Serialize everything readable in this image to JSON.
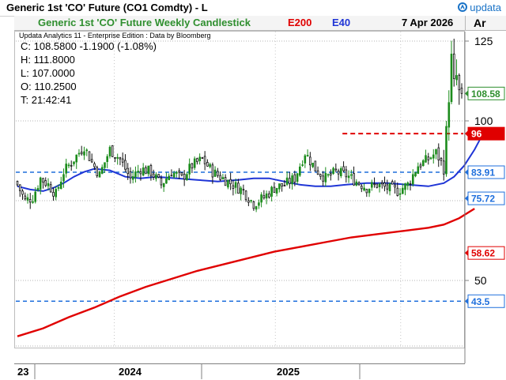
{
  "window": {
    "title": "Generic 1st 'CO' Future (CO1 Comdty) - L",
    "brand": "Updata Analytics",
    "brand_small": "updata"
  },
  "header": {
    "chart_title": "Generic 1st 'CO' Future Weekly Candlestick",
    "ma_slow_label": "E200",
    "ma_fast_label": "E40",
    "date": "7 Apr 2026",
    "axis_tab": "Ar"
  },
  "info": {
    "source_line": "Updata Analytics 11 - Enterprise Edition : Data by Bloomberg",
    "close_line": "C: 108.5800  -1.1900 (-1.08%)",
    "high_line": "H: 111.8000",
    "low_line": "L: 107.0000",
    "open_line": "O: 110.2500",
    "time_line": "T: 21:42:41"
  },
  "colors": {
    "up_candle": "#1c8c1c",
    "down_candle": "#111111",
    "ma_slow": "#e00000",
    "ma_fast": "#1f35d6",
    "hline_red": "#e00000",
    "hline_blue": "#1f6fdc",
    "label_green": "#2f8f2f",
    "label_red": "#e00000",
    "label_blue": "#1f6fdc"
  },
  "chart_data": {
    "type": "candlestick",
    "y_ticks": [
      125,
      100,
      50
    ],
    "y_range": [
      28,
      130
    ],
    "x_labels": [
      "23",
      "2024",
      "2025"
    ],
    "grid_values": [
      125,
      100,
      75,
      50
    ],
    "ma_fast": [
      [
        0,
        79.5
      ],
      [
        5,
        78.5
      ],
      [
        10,
        78.0
      ],
      [
        14,
        79.0
      ],
      [
        18,
        80.5
      ],
      [
        22,
        82.5
      ],
      [
        26,
        84.0
      ],
      [
        30,
        85.0
      ],
      [
        36,
        84.5
      ],
      [
        42,
        82.5
      ],
      [
        48,
        82.0
      ],
      [
        54,
        82.5
      ],
      [
        62,
        82.0
      ],
      [
        70,
        81.5
      ],
      [
        78,
        81.0
      ],
      [
        86,
        81.5
      ],
      [
        92,
        82.0
      ],
      [
        98,
        82.0
      ],
      [
        104,
        81.0
      ],
      [
        110,
        80.0
      ],
      [
        116,
        79.5
      ],
      [
        122,
        79.5
      ],
      [
        128,
        80.0
      ],
      [
        136,
        80.5
      ],
      [
        144,
        80.5
      ],
      [
        152,
        80.0
      ],
      [
        160,
        79.5
      ],
      [
        166,
        80.5
      ],
      [
        170,
        82.5
      ],
      [
        174,
        86.0
      ],
      [
        178,
        91.0
      ],
      [
        180,
        94.0
      ]
    ],
    "ma_slow": [
      [
        0,
        32.5
      ],
      [
        10,
        35.0
      ],
      [
        20,
        38.5
      ],
      [
        30,
        41.5
      ],
      [
        40,
        45.0
      ],
      [
        50,
        48.0
      ],
      [
        60,
        50.5
      ],
      [
        70,
        53.0
      ],
      [
        80,
        55.0
      ],
      [
        90,
        57.0
      ],
      [
        100,
        59.0
      ],
      [
        110,
        60.5
      ],
      [
        120,
        62.0
      ],
      [
        130,
        63.5
      ],
      [
        140,
        64.5
      ],
      [
        150,
        65.5
      ],
      [
        160,
        66.5
      ],
      [
        166,
        67.5
      ],
      [
        172,
        69.5
      ],
      [
        176,
        71.5
      ],
      [
        178,
        72.5
      ]
    ],
    "candles_anchor": [
      [
        0,
        80
      ],
      [
        3,
        75
      ],
      [
        6,
        76
      ],
      [
        9,
        82
      ],
      [
        12,
        80
      ],
      [
        15,
        77
      ],
      [
        18,
        84
      ],
      [
        22,
        88
      ],
      [
        26,
        92
      ],
      [
        29,
        87
      ],
      [
        32,
        83
      ],
      [
        36,
        91
      ],
      [
        40,
        88
      ],
      [
        44,
        82
      ],
      [
        48,
        85
      ],
      [
        52,
        84
      ],
      [
        56,
        80
      ],
      [
        60,
        84
      ],
      [
        64,
        82
      ],
      [
        68,
        86
      ],
      [
        72,
        88
      ],
      [
        76,
        84
      ],
      [
        80,
        82
      ],
      [
        84,
        80
      ],
      [
        88,
        78
      ],
      [
        92,
        74
      ],
      [
        96,
        76
      ],
      [
        100,
        79
      ],
      [
        104,
        80
      ],
      [
        108,
        82
      ],
      [
        112,
        90
      ],
      [
        116,
        85
      ],
      [
        120,
        82
      ],
      [
        124,
        84
      ],
      [
        128,
        83
      ],
      [
        132,
        81
      ],
      [
        136,
        79
      ],
      [
        140,
        80
      ],
      [
        144,
        79
      ],
      [
        148,
        78
      ],
      [
        152,
        80
      ],
      [
        156,
        86
      ],
      [
        160,
        88
      ],
      [
        163,
        90
      ],
      [
        165,
        87
      ],
      [
        166,
        85
      ],
      [
        167,
        97
      ],
      [
        168,
        107
      ],
      [
        169,
        120
      ],
      [
        170,
        112
      ],
      [
        171,
        114
      ],
      [
        172,
        109
      ],
      [
        173,
        108.58
      ]
    ],
    "candles_count": 174,
    "last_candle": {
      "open": 110.25,
      "high": 111.8,
      "low": 107.0,
      "close": 108.58
    },
    "levels": [
      {
        "value": 96,
        "label": "96",
        "style": "red-dash",
        "from": 0.73
      },
      {
        "value": 83.91,
        "label": "83.91",
        "style": "blue-dash",
        "from": 0
      },
      {
        "value": 43.5,
        "label": "43.5",
        "style": "blue-dash",
        "from": 0
      }
    ],
    "price_labels": [
      {
        "value": 108.58,
        "label": "108.58",
        "color": "label_green"
      },
      {
        "value": 75.72,
        "label": "75.72",
        "color": "label_blue"
      },
      {
        "value": 58.62,
        "label": "58.62",
        "color": "label_red"
      }
    ]
  }
}
